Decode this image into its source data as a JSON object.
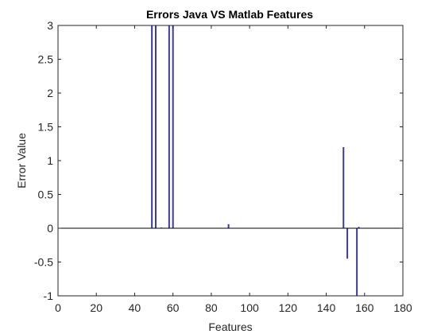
{
  "chart_data": {
    "type": "bar",
    "title": "Errors Java VS Matlab Features",
    "xlabel": "Features",
    "ylabel": "Error Value",
    "xlim": [
      0,
      180
    ],
    "ylim": [
      -1,
      3
    ],
    "x_ticks": [
      0,
      20,
      40,
      60,
      80,
      100,
      120,
      140,
      160,
      180
    ],
    "y_ticks": [
      -1,
      -0.5,
      0,
      0.5,
      1,
      1.5,
      2,
      2.5,
      3
    ],
    "x_tick_labels": [
      "0",
      "20",
      "40",
      "60",
      "80",
      "100",
      "120",
      "140",
      "160",
      "180"
    ],
    "y_tick_labels": [
      "-1",
      "-0.5",
      "0",
      "0.5",
      "1",
      "1.5",
      "2",
      "2.5",
      "3"
    ],
    "grid": false,
    "series": [
      {
        "color": "#3b3b9b",
        "x": [
          49,
          51,
          54,
          58,
          60,
          89,
          149,
          151,
          156,
          157
        ],
        "values": [
          3,
          3,
          0.01,
          3,
          3,
          0.06,
          1.2,
          -0.45,
          -1,
          0.02
        ]
      }
    ],
    "baseline": 0,
    "baseline_color": "#000000"
  }
}
